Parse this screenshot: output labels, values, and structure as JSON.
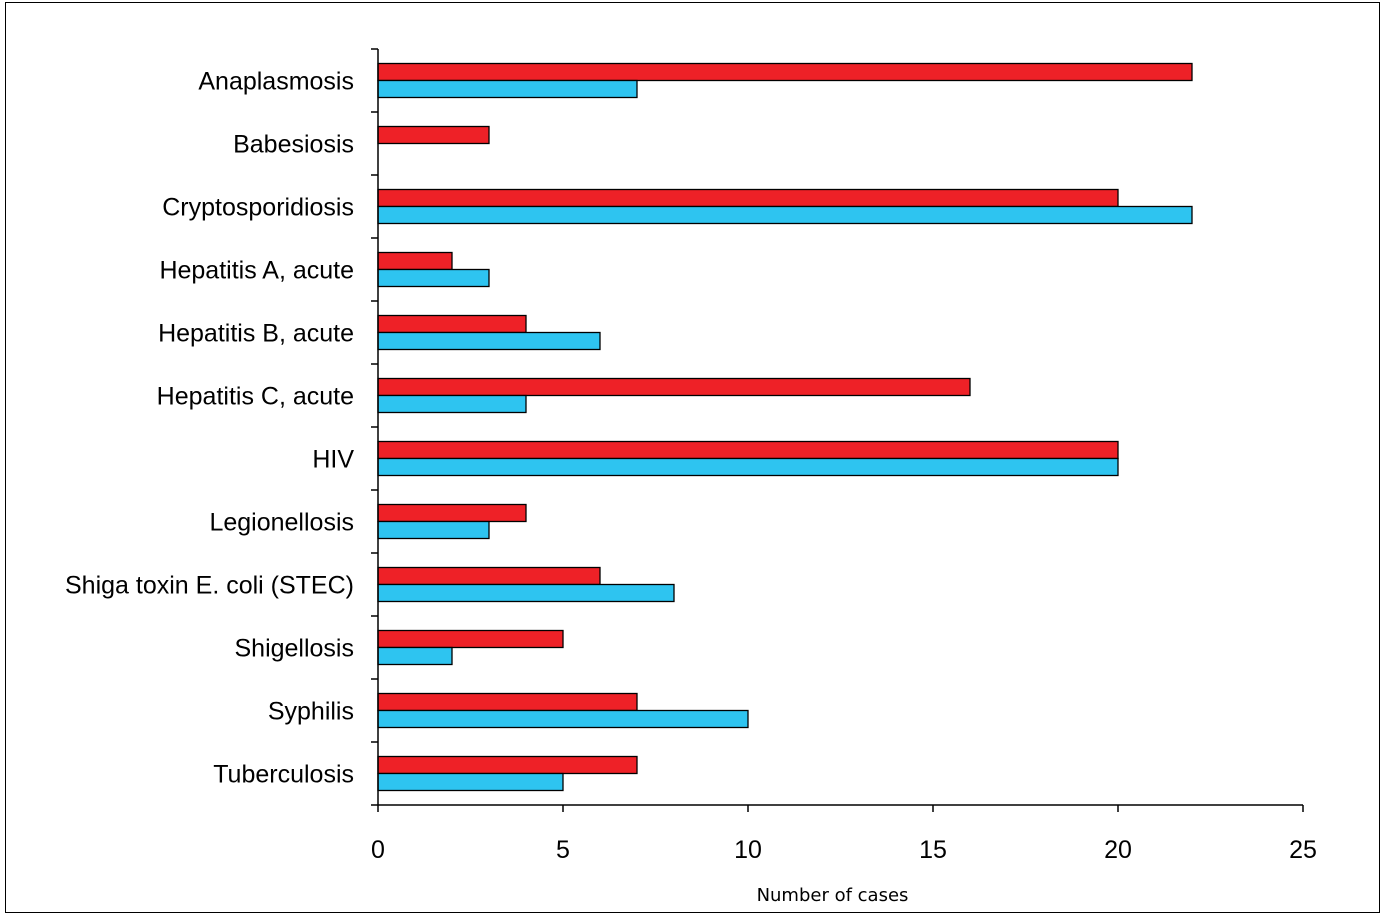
{
  "chart_data": {
    "type": "bar",
    "orientation": "horizontal",
    "title": "",
    "xlabel": "Number of cases",
    "ylabel": "",
    "xlim": [
      0,
      25
    ],
    "xticks": [
      0,
      5,
      10,
      15,
      20,
      25
    ],
    "grid": false,
    "categories": [
      "Anaplasmosis",
      "Babesiosis",
      "Cryptosporidiosis",
      "Hepatitis A, acute",
      "Hepatitis B, acute",
      "Hepatitis C, acute",
      "HIV",
      "Legionellosis",
      "Shiga toxin E. coli (STEC)",
      "Shigellosis",
      "Syphilis",
      "Tuberculosis"
    ],
    "series": [
      {
        "color": "#ee2127",
        "values": [
          22,
          3,
          20,
          2,
          4,
          16,
          20,
          4,
          6,
          5,
          7,
          7
        ]
      },
      {
        "color": "#2ec4f0",
        "values": [
          7,
          0,
          22,
          3,
          6,
          4,
          20,
          3,
          8,
          2,
          10,
          5
        ]
      }
    ]
  }
}
